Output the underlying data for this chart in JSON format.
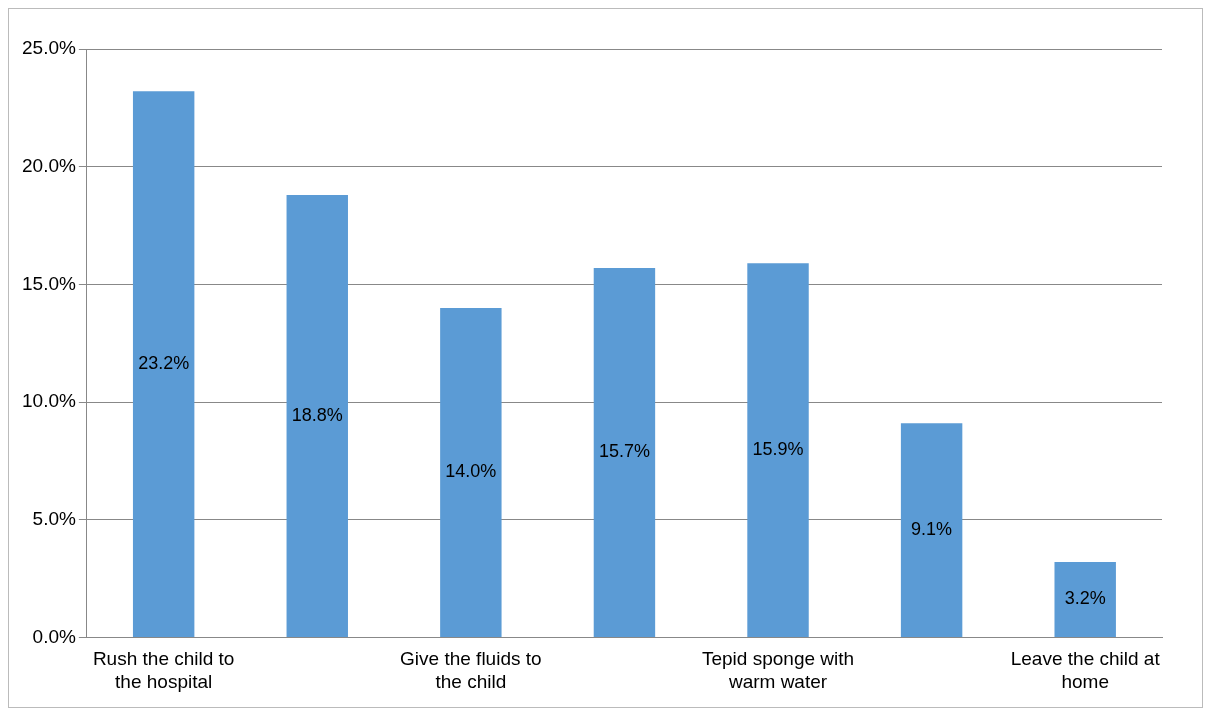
{
  "chart_data": {
    "type": "bar",
    "categories": [
      "Rush the child to the hospital",
      null,
      "Give the fluids to the child",
      null,
      "Tepid sponge with warm water",
      null,
      "Leave the child at home"
    ],
    "values": [
      23.2,
      18.8,
      14.0,
      15.7,
      15.9,
      9.1,
      3.2
    ],
    "value_labels": [
      "23.2%",
      "18.8%",
      "14.0%",
      "15.7%",
      "15.9%",
      "9.1%",
      "3.2%"
    ],
    "color": "#5b9bd5",
    "ylim": [
      0,
      25
    ],
    "yticks": [
      {
        "value": 0,
        "label": "0.0%"
      },
      {
        "value": 5,
        "label": "5.0%"
      },
      {
        "value": 10,
        "label": "10.0%"
      },
      {
        "value": 15,
        "label": "15.0%"
      },
      {
        "value": 20,
        "label": "20.0%"
      },
      {
        "value": 25,
        "label": "25.0%"
      }
    ],
    "grid": "y",
    "legend": false
  }
}
